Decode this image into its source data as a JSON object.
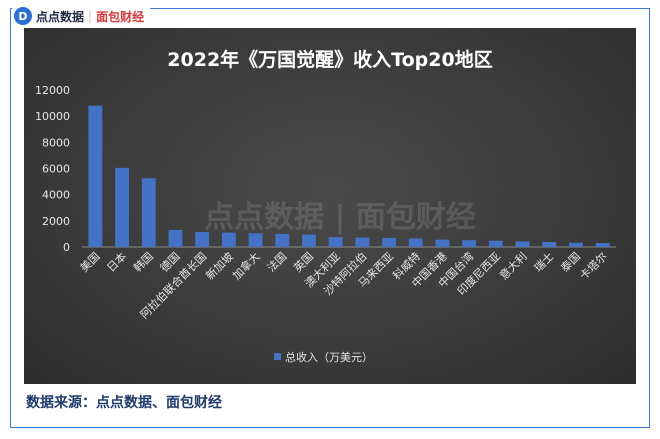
{
  "brand": {
    "logo_glyph": "D",
    "name_a": "点点数据",
    "separator": "|",
    "name_b": "面包财经"
  },
  "watermark": "点点数据 | 面包财经",
  "source_text": "数据来源：点点数据、面包财经",
  "colors": {
    "bar": "#4472c4",
    "frame": "#3a7bd5",
    "axis_text": "#e6e6e6"
  },
  "chart_data": {
    "type": "bar",
    "title": "2022年《万国觉醒》收入Top20地区",
    "xlabel": "",
    "ylabel": "",
    "ylim": [
      0,
      12000
    ],
    "yticks": [
      0,
      2000,
      4000,
      6000,
      8000,
      10000,
      12000
    ],
    "grid": false,
    "legend": "bottom",
    "categories": [
      "美国",
      "日本",
      "韩国",
      "德国",
      "阿拉伯联合酋长国",
      "新加坡",
      "加拿大",
      "法国",
      "英国",
      "澳大利亚",
      "沙特阿拉伯",
      "马来西亚",
      "科威特",
      "中国香港",
      "中国台湾",
      "印度尼西亚",
      "意大利",
      "瑞士",
      "泰国",
      "卡塔尔"
    ],
    "series": [
      {
        "name": "总收入（万美元）",
        "values": [
          10800,
          6050,
          5250,
          1300,
          1150,
          1100,
          1050,
          1000,
          950,
          750,
          720,
          700,
          650,
          560,
          520,
          480,
          430,
          380,
          330,
          300
        ]
      }
    ]
  }
}
